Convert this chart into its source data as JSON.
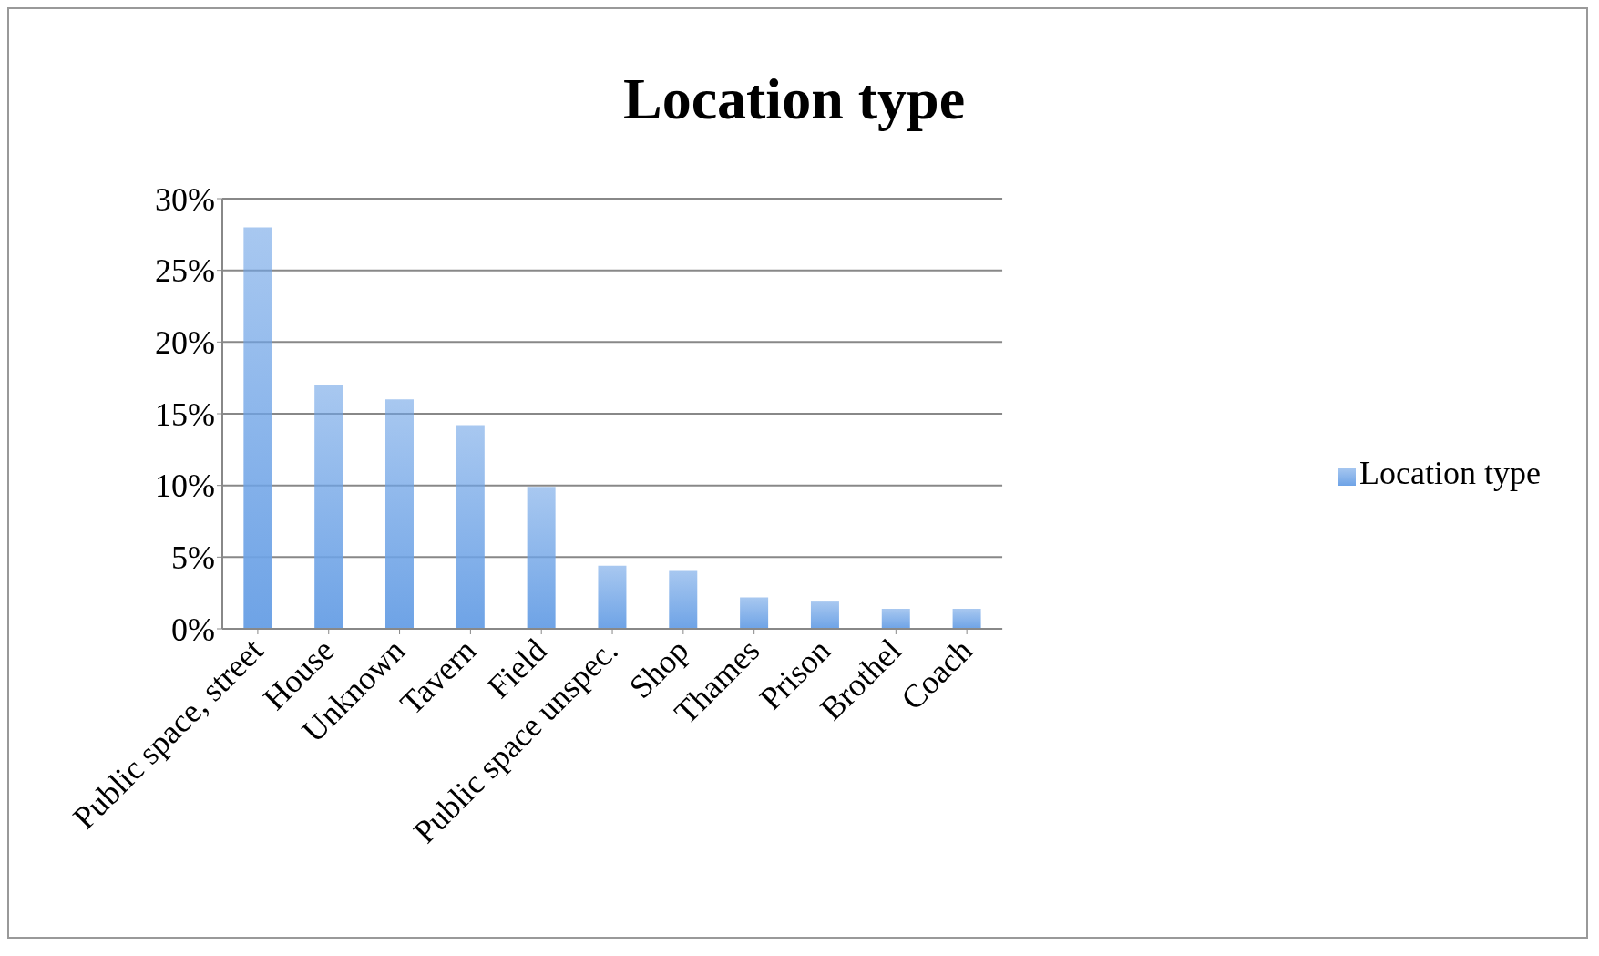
{
  "chart_data": {
    "type": "bar",
    "title": "Location type",
    "categories": [
      "Public space, street",
      "House",
      "Unknown",
      "Tavern",
      "Field",
      "Public space unspec.",
      "Shop",
      "Thames",
      "Prison",
      "Brothel",
      "Coach"
    ],
    "series": [
      {
        "name": "Location type",
        "color": "#6ea3e6",
        "values": [
          28.0,
          17.0,
          16.0,
          14.2,
          9.9,
          4.4,
          4.1,
          2.2,
          1.9,
          1.4,
          1.4
        ]
      }
    ],
    "ylim": [
      0,
      30
    ],
    "yticks": [
      {
        "value": 0,
        "label": "0%"
      },
      {
        "value": 5,
        "label": "5%"
      },
      {
        "value": 10,
        "label": "10%"
      },
      {
        "value": 15,
        "label": "15%"
      },
      {
        "value": 20,
        "label": "20%"
      },
      {
        "value": 25,
        "label": "25%"
      },
      {
        "value": 30,
        "label": "30%"
      }
    ],
    "grid": "y",
    "legend": "right"
  }
}
